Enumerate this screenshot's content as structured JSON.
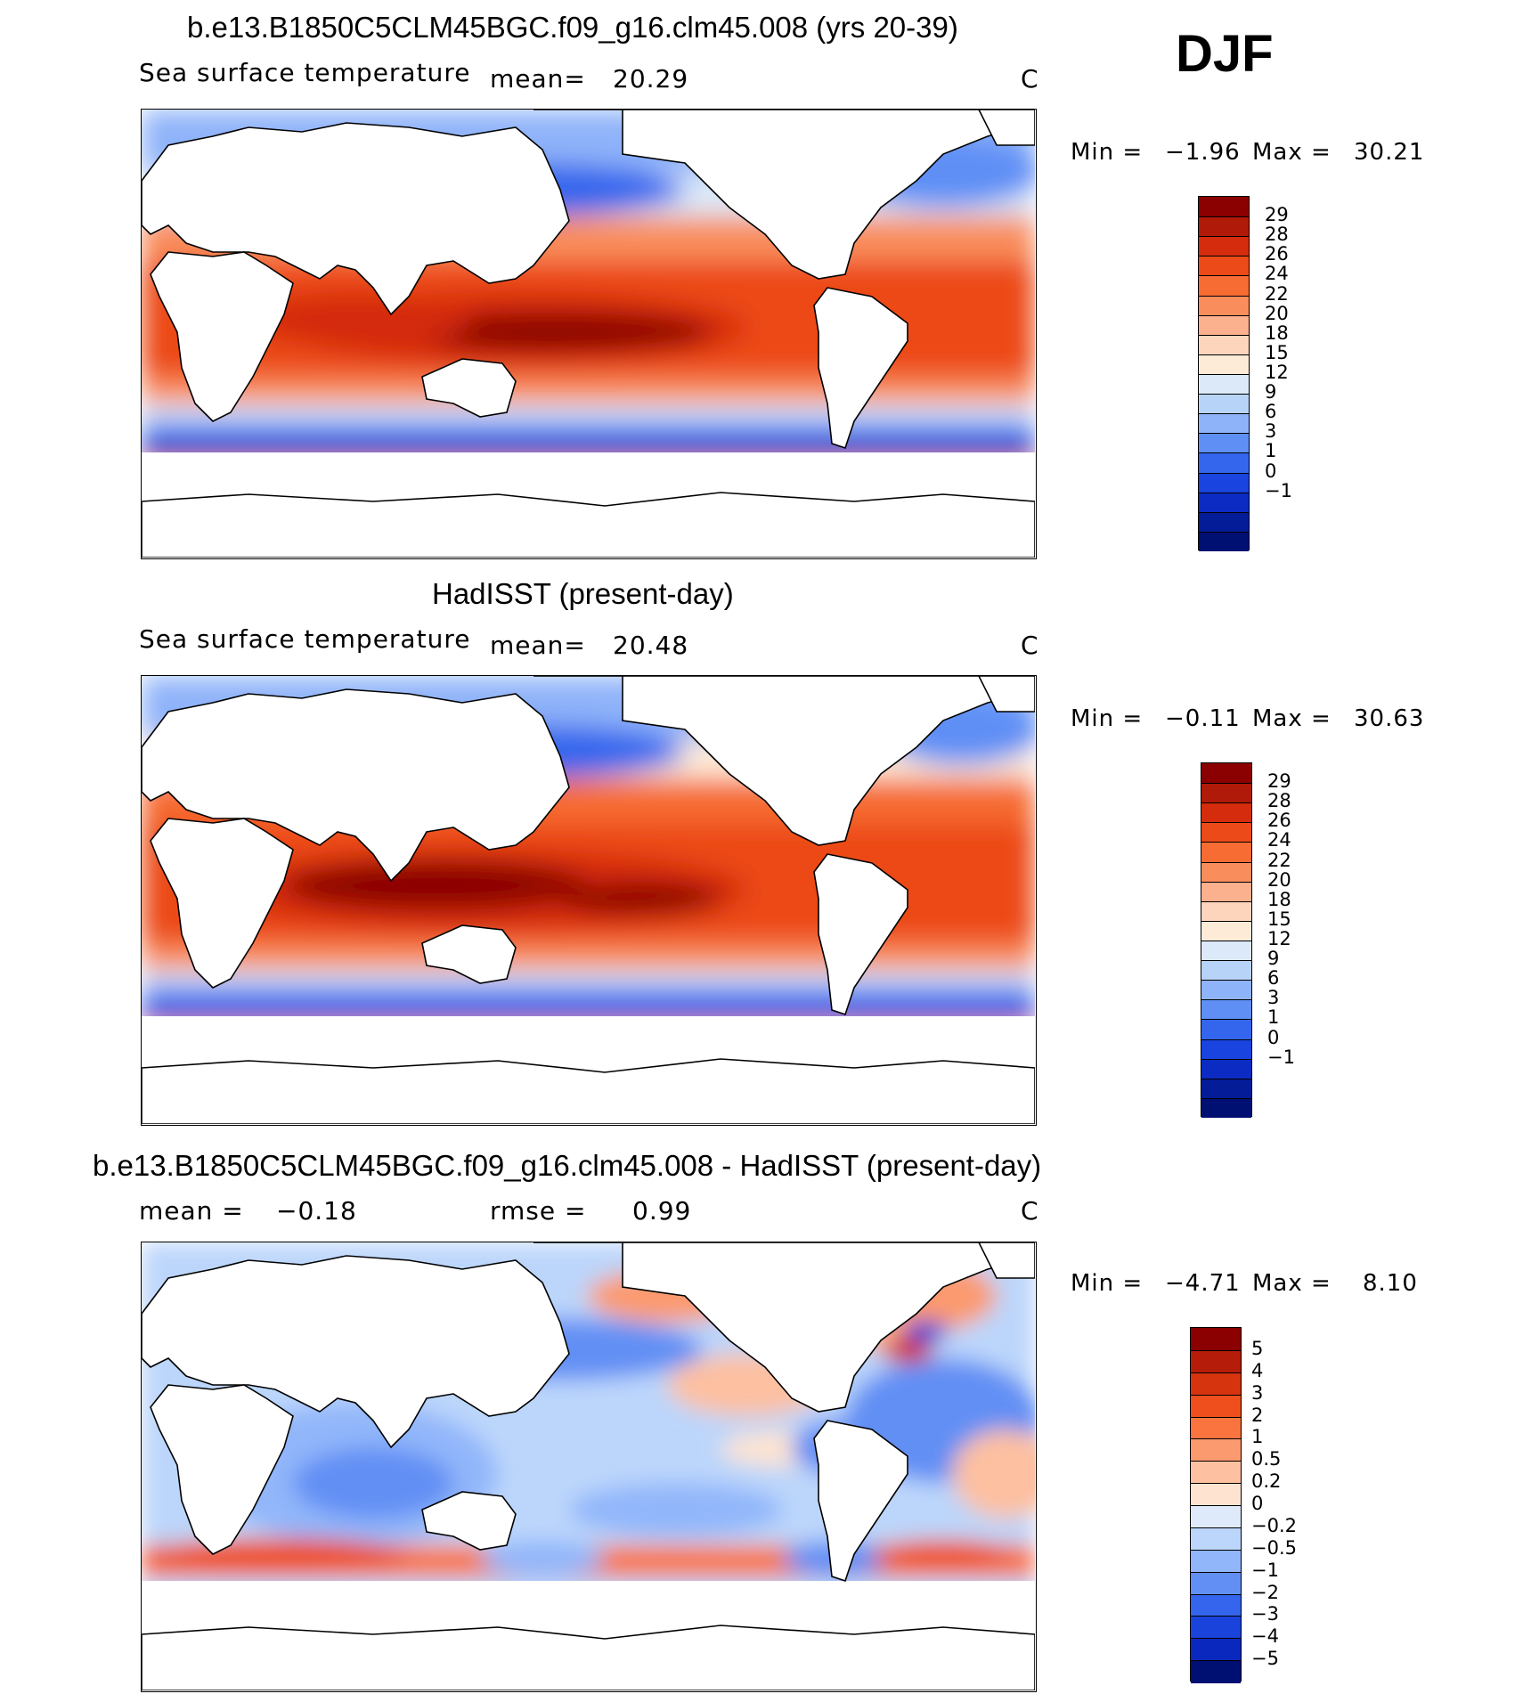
{
  "season": "DJF",
  "panels": [
    {
      "title": "b.e13.B1850C5CLM45BGC.f09_g16.clm45.008 (yrs 20-39)",
      "left_label": "Sea surface temperature",
      "stat1": "mean=",
      "stat1_value": "20.29",
      "stat2": "",
      "stat2_value": "",
      "units": "C",
      "min_label": "Min =",
      "min_value": "−1.96",
      "max_label": "Max =",
      "max_value": "30.21",
      "kind": "sst"
    },
    {
      "title": "HadISST (present-day)",
      "left_label": "Sea surface temperature",
      "stat1": "mean=",
      "stat1_value": "20.48",
      "stat2": "",
      "stat2_value": "",
      "units": "C",
      "min_label": "Min =",
      "min_value": "−0.11",
      "max_label": "Max =",
      "max_value": "30.63",
      "kind": "sst"
    },
    {
      "title": "b.e13.B1850C5CLM45BGC.f09_g16.clm45.008 - HadISST (present-day)",
      "left_label": "mean =",
      "stat1": "−0.18",
      "stat1_value": "",
      "stat2": "rmse =",
      "stat2_value": "0.99",
      "units": "C",
      "min_label": "Min =",
      "min_value": "−4.71",
      "max_label": "Max =",
      "max_value": "8.10",
      "kind": "diff"
    }
  ],
  "colorbars": {
    "sst": {
      "labels": [
        "29",
        "28",
        "26",
        "24",
        "22",
        "20",
        "18",
        "15",
        "12",
        "9",
        "6",
        "3",
        "1",
        "0",
        "−1"
      ],
      "colors": [
        "#8b0000",
        "#b01a08",
        "#d42c0c",
        "#ec4a18",
        "#f66c32",
        "#f98d5c",
        "#fbb08e",
        "#fdd4bc",
        "#fdebd8",
        "#dce9f8",
        "#b8d3f8",
        "#8fb3f9",
        "#5f8ff5",
        "#3466ed",
        "#1a44df",
        "#0b2bc2",
        "#041c98",
        "#000f72"
      ]
    },
    "diff": {
      "labels": [
        "5",
        "4",
        "3",
        "2",
        "1",
        "0.5",
        "0.2",
        "0",
        "−0.2",
        "−0.5",
        "−1",
        "−2",
        "−3",
        "−4",
        "−5"
      ],
      "colors": [
        "#8b0000",
        "#b51d0a",
        "#d6330f",
        "#ee4f1d",
        "#f9743f",
        "#fb9a6f",
        "#fdc0a0",
        "#fee4d0",
        "#deeafa",
        "#bcd6fb",
        "#91b6fa",
        "#628ff4",
        "#3565ec",
        "#1a43dc",
        "#0a28bd",
        "#000f72"
      ]
    }
  }
}
